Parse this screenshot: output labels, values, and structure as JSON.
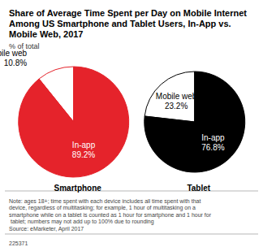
{
  "title": "Share of Average Time Spent per Day on Mobile Internet Among US Smartphone and Tablet Users, In-App vs. Mobile Web, 2017",
  "subtitle": "% of total",
  "note": "Note: ages 18+; time spent with each device includes all time spent with that device, regardless of multitasking; for example, 1 hour of multitasking on a smartphone while on a tablet is counted as 1 hour for smartphone and 1 hour for tablet; numbers may not add up to 100% due to rounding",
  "source": "Source: eMarketer, April 2017",
  "chart_id": "225371",
  "chart_data": [
    {
      "type": "pie",
      "title": "Smartphone",
      "categories": [
        "Mobile web",
        "In-app"
      ],
      "values": [
        10.8,
        89.2
      ],
      "value_labels": [
        "10.8%",
        "89.2%"
      ],
      "colors": [
        "#ffffff",
        "#e5232b"
      ],
      "data_labels": true
    },
    {
      "type": "pie",
      "title": "Tablet",
      "categories": [
        "Mobile web",
        "In-app"
      ],
      "values": [
        23.2,
        76.8
      ],
      "value_labels": [
        "23.2%",
        "76.8%"
      ],
      "colors": [
        "#ffffff",
        "#000000"
      ],
      "data_labels": true
    }
  ]
}
